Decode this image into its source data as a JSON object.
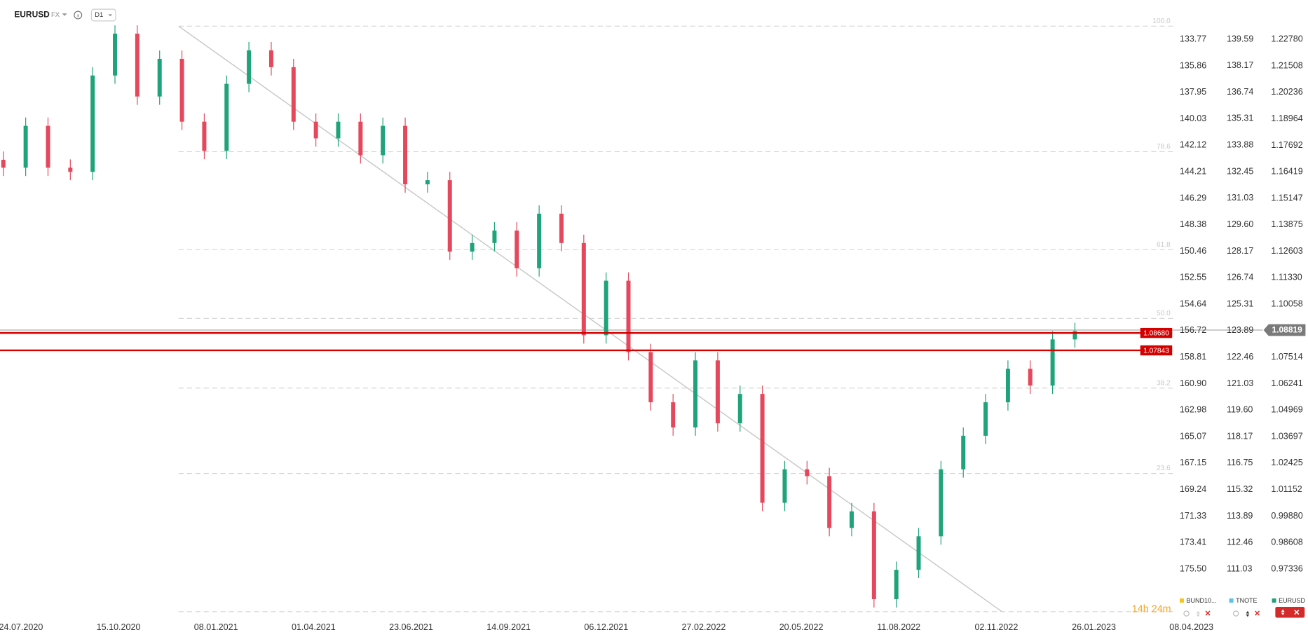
{
  "toolbar": {
    "symbol": "EURUSD",
    "market": "FX",
    "interval": "D1"
  },
  "chart_data": {
    "type": "candlestick",
    "up_color": "#1fa37a",
    "down_color": "#e5485c",
    "open": [
      1.17,
      1.1662,
      1.1863,
      1.1662,
      1.1642,
      1.2105,
      1.2306,
      1.2004,
      1.2185,
      1.1883,
      1.1743,
      1.2065,
      1.2226,
      1.2145,
      1.1883,
      1.1803,
      1.1883,
      1.1722,
      1.1863,
      1.1582,
      1.1602,
      1.1259,
      1.13,
      1.136,
      1.1179,
      1.1441,
      1.13,
      1.0857,
      1.1119,
      1.0776,
      1.0535,
      1.0414,
      1.0736,
      1.0434,
      1.0575,
      1.0052,
      1.0213,
      1.018,
      0.9931,
      1.0011,
      0.9589,
      0.973,
      0.9891,
      1.0213,
      1.0374,
      1.0535,
      1.0696,
      1.0615,
      1.0837
    ],
    "high": [
      1.174,
      1.1903,
      1.1903,
      1.1702,
      1.2145,
      1.2346,
      1.2346,
      1.2225,
      1.2225,
      1.1923,
      1.2105,
      1.2266,
      1.2266,
      1.2185,
      1.1923,
      1.1923,
      1.1923,
      1.1903,
      1.1903,
      1.1642,
      1.1642,
      1.134,
      1.14,
      1.14,
      1.1481,
      1.1481,
      1.134,
      1.1159,
      1.1159,
      1.0816,
      1.0575,
      1.0776,
      1.0776,
      1.0615,
      1.0615,
      1.0253,
      1.0253,
      1.022,
      1.0051,
      1.0051,
      0.977,
      0.9931,
      1.0253,
      1.0414,
      1.0575,
      1.0736,
      1.0736,
      1.0877,
      1.0917
    ],
    "low": [
      1.1622,
      1.1622,
      1.1622,
      1.1602,
      1.1602,
      1.2065,
      1.1964,
      1.1964,
      1.1843,
      1.1703,
      1.1703,
      1.2025,
      1.2105,
      1.1843,
      1.1763,
      1.1763,
      1.1682,
      1.1682,
      1.1542,
      1.1542,
      1.1219,
      1.1219,
      1.126,
      1.1139,
      1.1139,
      1.126,
      1.0817,
      1.0817,
      1.0736,
      1.0495,
      1.0374,
      1.0374,
      1.0394,
      1.0394,
      1.0012,
      1.0012,
      1.014,
      0.9891,
      0.9891,
      0.9549,
      0.9549,
      0.969,
      0.9851,
      1.0173,
      1.0334,
      1.0495,
      1.0575,
      1.0575,
      1.0797
    ],
    "close": [
      1.1662,
      1.1863,
      1.1662,
      1.1642,
      1.2105,
      1.2306,
      1.2004,
      1.2185,
      1.1883,
      1.1743,
      1.2065,
      1.2226,
      1.2145,
      1.1883,
      1.1803,
      1.1883,
      1.1722,
      1.1863,
      1.1582,
      1.1602,
      1.1259,
      1.13,
      1.136,
      1.1179,
      1.1441,
      1.13,
      1.0857,
      1.1119,
      1.0776,
      1.0535,
      1.0414,
      1.0736,
      1.0434,
      1.0575,
      1.0052,
      1.0213,
      1.018,
      0.9931,
      1.0011,
      0.9589,
      0.973,
      0.9891,
      1.0213,
      1.0374,
      1.0535,
      1.0696,
      1.0615,
      1.0837,
      1.0877
    ],
    "xticks": [
      "24.07.2020",
      "15.10.2020",
      "08.01.2021",
      "01.04.2021",
      "23.06.2021",
      "14.09.2021",
      "06.12.2021",
      "27.02.2022",
      "20.05.2022",
      "11.08.2022",
      "02.11.2022",
      "26.01.2023",
      "08.04.2023"
    ],
    "ylim": [
      0.9528,
      1.2367
    ],
    "yticks": [
      {
        "value": 1.2278,
        "label": "1.22780"
      },
      1.21508,
      1.20236,
      1.18964,
      1.17692,
      1.16419,
      1.15147,
      1.13875,
      1.12603,
      {
        "value": 1.1133,
        "label": "1.11330"
      },
      1.10058,
      1.07514,
      1.06241,
      1.04969,
      1.03697,
      1.02425,
      1.01152,
      {
        "value": 0.9988,
        "label": "0.99880"
      },
      0.98608,
      0.97336
    ],
    "y2lim": [
      108.73,
      140.58
    ],
    "y2ticks": [
      139.59,
      138.17,
      136.74,
      135.31,
      133.88,
      132.45,
      131.03,
      {
        "value": 129.6,
        "label": "129.60"
      },
      128.17,
      126.74,
      125.31,
      123.89,
      122.46,
      121.03,
      {
        "value": 119.6,
        "label": "119.60"
      },
      118.17,
      116.75,
      115.32,
      113.89,
      112.46,
      111.03
    ],
    "y3lim": [
      178.87,
      132.32
    ],
    "y3ticks": [
      133.77,
      135.86,
      137.95,
      140.03,
      142.12,
      144.21,
      146.29,
      148.38,
      150.46,
      152.55,
      154.64,
      156.72,
      158.81,
      {
        "value": 160.9,
        "label": "160.90"
      },
      162.98,
      165.07,
      167.15,
      169.24,
      171.33,
      173.41,
      {
        "value": 175.5,
        "label": "175.50"
      }
    ],
    "levels": [
      {
        "value": 1.0868,
        "label": "1.08680",
        "color": "#d40000"
      },
      {
        "value": 1.07843,
        "label": "1.07843",
        "color": "#d40000"
      }
    ],
    "last_price": {
      "value": 1.08819,
      "label": "1.08819"
    },
    "fibonacci": {
      "levels": [
        {
          "value": 100,
          "label": "100.0"
        },
        78.6,
        61.8,
        {
          "value": 50,
          "label": "50.0"
        },
        38.2,
        23.6,
        null
      ],
      "prices": [
        1.2342,
        1.1739,
        1.1268,
        1.0938,
        1.0603,
        1.0193,
        0.9529
      ]
    },
    "trendline": [
      1.2342,
      0.9529
    ],
    "countdown": "14h 24m",
    "legend": [
      {
        "name": "BUND10...",
        "color": "#f5c518"
      },
      {
        "name": "TNOTE",
        "color": "#5bc0eb"
      },
      {
        "name": "EURUSD",
        "color": "#1fa37a"
      }
    ]
  }
}
